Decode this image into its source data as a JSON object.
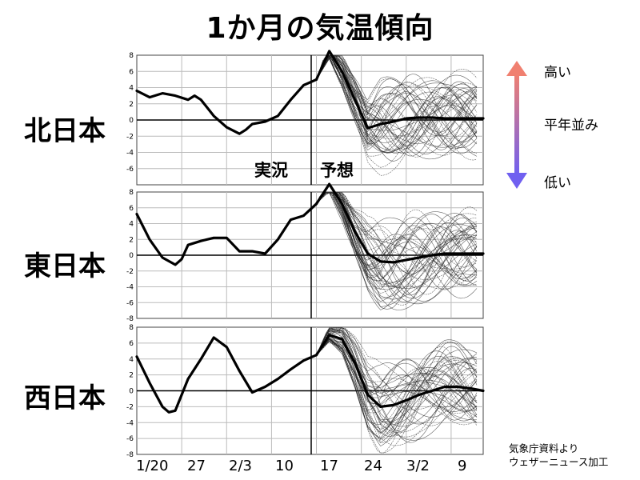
{
  "title": "1か月の気温傾向",
  "source": [
    "気象庁資料より",
    "ウェザーニュース加工"
  ],
  "legend": {
    "high": "高い",
    "normal": "平年並み",
    "low": "低い",
    "high_color": "#f08070",
    "low_color": "#7060f0"
  },
  "phase_labels": {
    "observed": "実況",
    "forecast": "予想"
  },
  "chart_data": [
    {
      "type": "line",
      "region": "北日本",
      "ylim": [
        -8,
        8
      ],
      "yticks": [
        -6,
        -4,
        -2,
        0,
        2,
        4,
        6,
        8
      ],
      "x_ticks": [
        "1/20",
        "27",
        "2/3",
        "10",
        "17",
        "24",
        "3/2",
        "9"
      ],
      "x_range_days": [
        0,
        54
      ],
      "forecast_start_day": 28,
      "series": [
        {
          "role": "observed",
          "x": [
            0,
            2,
            4,
            6,
            8,
            9,
            10,
            12,
            14,
            16,
            17,
            18,
            20,
            22,
            24,
            26,
            28
          ],
          "y": [
            3.6,
            2.8,
            3.3,
            3.0,
            2.5,
            3.0,
            2.5,
            0.5,
            -0.9,
            -1.7,
            -1.2,
            -0.5,
            -0.2,
            0.5,
            2.5,
            4.3,
            5.0
          ]
        },
        {
          "role": "forecast_mean",
          "x": [
            28,
            30,
            32,
            34,
            36,
            38,
            40,
            42,
            44,
            46,
            48,
            50,
            52,
            54
          ],
          "y": [
            5.0,
            8.5,
            6.0,
            2.5,
            -1.0,
            -0.5,
            -0.2,
            0.2,
            0.3,
            0.3,
            0.2,
            0.2,
            0.2,
            0.2
          ]
        }
      ]
    },
    {
      "type": "line",
      "region": "東日本",
      "ylim": [
        -8,
        8
      ],
      "yticks": [
        -8,
        -6,
        -4,
        -2,
        0,
        2,
        4,
        6,
        8
      ],
      "x_ticks": [
        "1/20",
        "27",
        "2/3",
        "10",
        "17",
        "24",
        "3/2",
        "9"
      ],
      "x_range_days": [
        0,
        54
      ],
      "forecast_start_day": 28,
      "series": [
        {
          "role": "observed",
          "x": [
            0,
            2,
            4,
            6,
            7,
            8,
            10,
            12,
            14,
            16,
            18,
            20,
            22,
            24,
            26,
            28
          ],
          "y": [
            5.2,
            2.0,
            -0.3,
            -1.2,
            -0.5,
            1.3,
            1.8,
            2.2,
            2.2,
            0.5,
            0.5,
            0.2,
            2.0,
            4.5,
            5.0,
            6.5
          ]
        },
        {
          "role": "forecast_mean",
          "x": [
            28,
            30,
            32,
            34,
            36,
            38,
            40,
            42,
            44,
            46,
            48,
            50,
            52,
            54
          ],
          "y": [
            6.5,
            9.0,
            6.5,
            3.0,
            0.2,
            -0.8,
            -0.9,
            -0.6,
            -0.3,
            0.0,
            0.2,
            0.2,
            0.2,
            0.2
          ]
        }
      ]
    },
    {
      "type": "line",
      "region": "西日本",
      "ylim": [
        -8,
        8
      ],
      "yticks": [
        -8,
        -6,
        -4,
        -2,
        0,
        2,
        4,
        6,
        8
      ],
      "x_ticks": [
        "1/20",
        "27",
        "2/3",
        "10",
        "17",
        "24",
        "3/2",
        "9"
      ],
      "x_range_days": [
        0,
        54
      ],
      "forecast_start_day": 28,
      "series": [
        {
          "role": "observed",
          "x": [
            0,
            2,
            4,
            5,
            6,
            7,
            8,
            10,
            12,
            14,
            16,
            18,
            20,
            22,
            24,
            26,
            28
          ],
          "y": [
            4.3,
            1.0,
            -2.0,
            -2.7,
            -2.5,
            -0.5,
            1.5,
            4.0,
            6.7,
            5.5,
            2.5,
            -0.2,
            0.5,
            1.5,
            2.7,
            3.8,
            4.5
          ]
        },
        {
          "role": "forecast_mean",
          "x": [
            28,
            30,
            32,
            34,
            36,
            38,
            40,
            42,
            44,
            46,
            48,
            50,
            52,
            54
          ],
          "y": [
            4.5,
            7.0,
            6.5,
            3.5,
            -0.5,
            -2.0,
            -1.8,
            -1.2,
            -0.5,
            0.0,
            0.5,
            0.5,
            0.3,
            0.0
          ]
        }
      ]
    }
  ]
}
